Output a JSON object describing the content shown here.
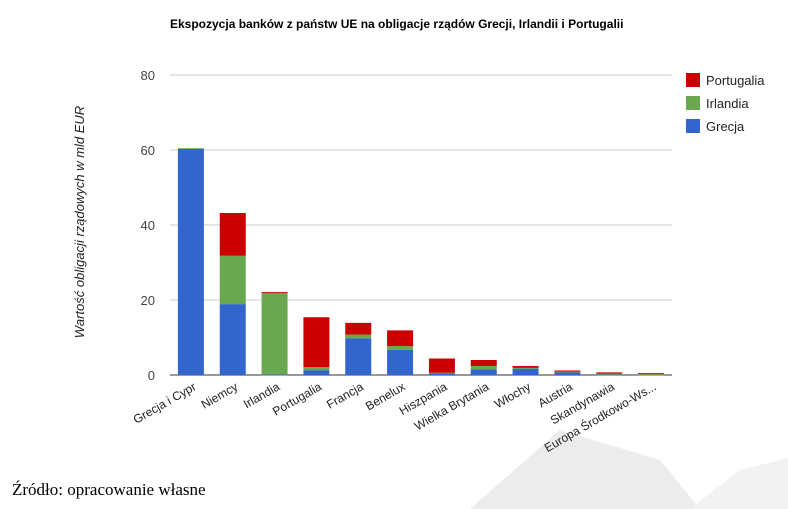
{
  "title": "Ekspozycja banków z państw UE na obligacje rządów Grecji, Irlandii i Portugalii",
  "source_note": "Źródło: opracowanie własne",
  "chart_data": {
    "type": "bar",
    "stacked": true,
    "title": "Ekspozycja banków z państw UE na obligacje rządów Grecji, Irlandii i Portugalii",
    "xlabel": "",
    "ylabel": "Wartość obligacji rządowych w mld EUR",
    "ylim": [
      0,
      80
    ],
    "yticks": [
      0,
      20,
      40,
      60,
      80
    ],
    "grid": true,
    "legend_position": "right",
    "categories": [
      "Grecja i Cypr",
      "Niemcy",
      "Irlandia",
      "Portugalia",
      "Francja",
      "Benelux",
      "Hiszpania",
      "Wielka Brytania",
      "Włochy",
      "Austria",
      "Skandynawia",
      "Europa Środkowo-Ws..."
    ],
    "series": [
      {
        "name": "Grecja",
        "color": "#3366cc",
        "values": [
          60.3,
          18.9,
          0.1,
          1.3,
          9.8,
          6.7,
          0.4,
          1.5,
          1.7,
          0.7,
          0.1,
          0.1
        ]
      },
      {
        "name": "Irlandia",
        "color": "#6aa84f",
        "values": [
          0.2,
          12.9,
          21.7,
          0.8,
          1.0,
          1.0,
          0.2,
          0.9,
          0.2,
          0.2,
          0.3,
          0.1
        ]
      },
      {
        "name": "Portugalia",
        "color": "#cc0000",
        "values": [
          0.0,
          11.4,
          0.3,
          13.3,
          3.1,
          4.2,
          3.8,
          1.6,
          0.5,
          0.3,
          0.3,
          0.3
        ]
      }
    ]
  }
}
